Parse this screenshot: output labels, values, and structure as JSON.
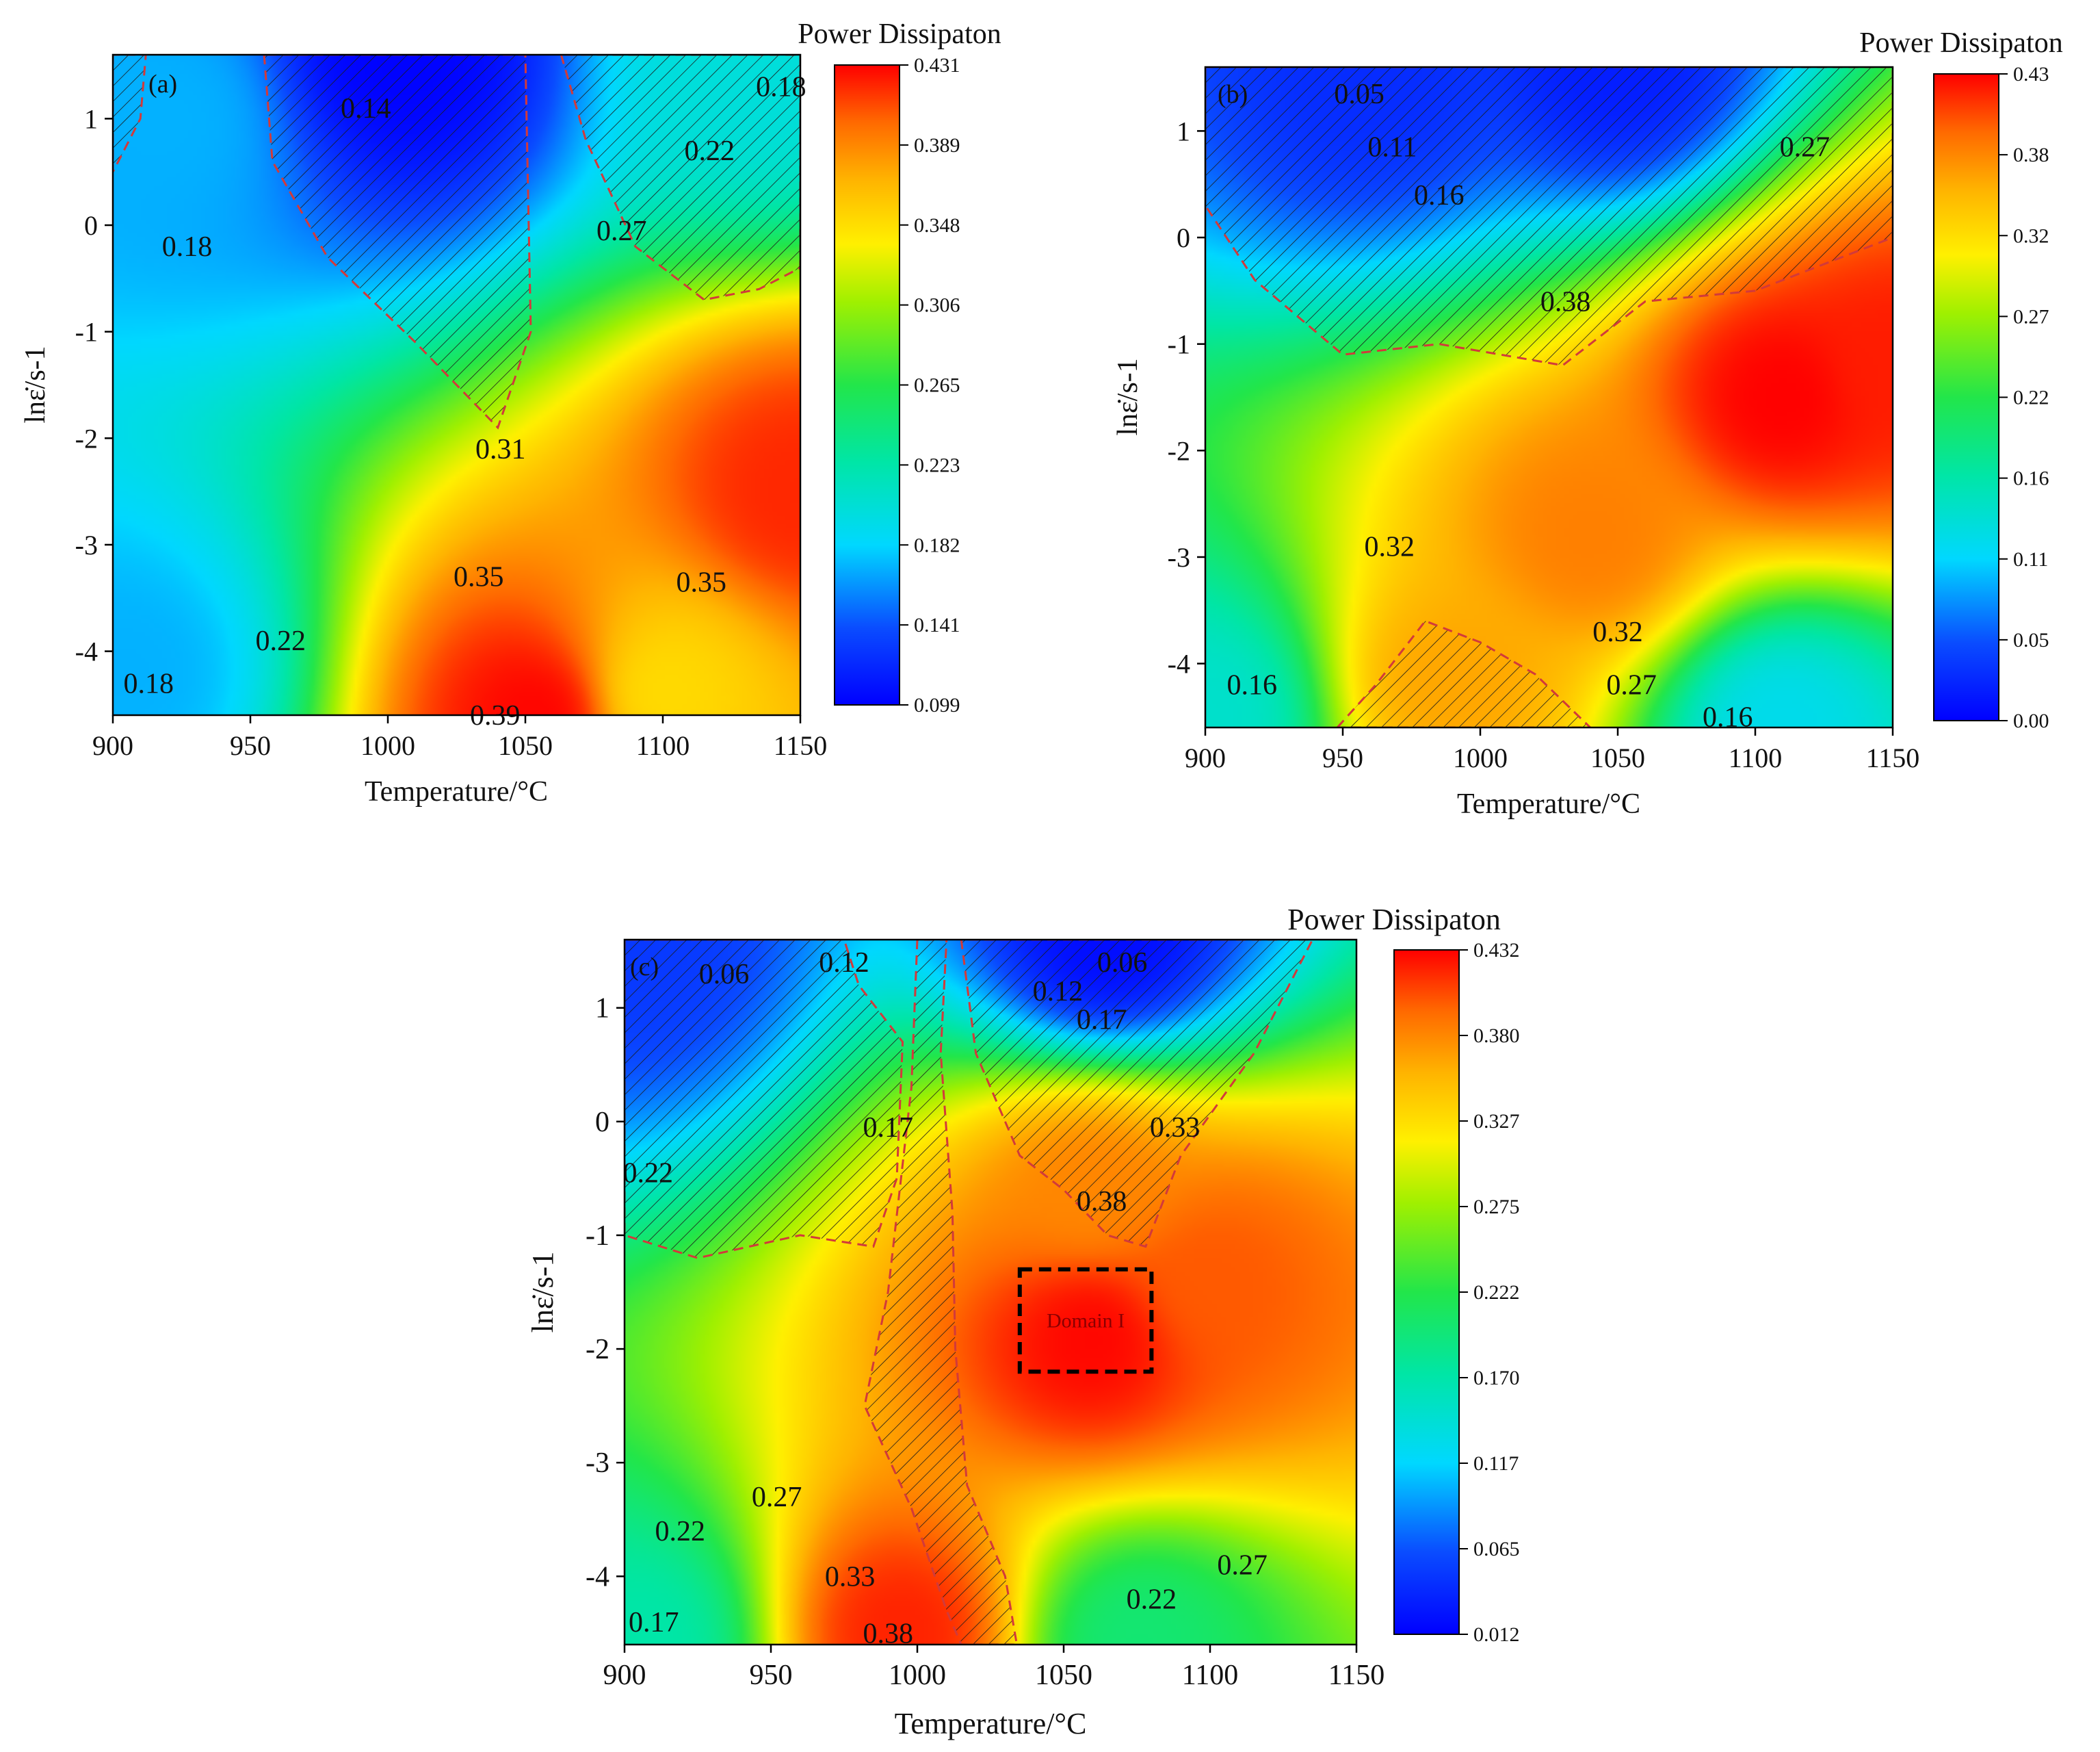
{
  "chart_data": [
    {
      "type": "heatmap",
      "panel_label": "(a)",
      "title": "",
      "xlabel": "Temperature/°C",
      "ylabel": "lnε̇/s-1",
      "colorbar_title": "Power Dissipaton",
      "xlim": [
        900,
        1150
      ],
      "ylim": [
        -4.6,
        1.6
      ],
      "xticks": [
        "900",
        "950",
        "1000",
        "1050",
        "1100",
        "1150"
      ],
      "yticks": [
        "1",
        "0",
        "-1",
        "-2",
        "-3",
        "-4"
      ],
      "colorbar_range": [
        0.099,
        0.431
      ],
      "colorbar_ticks": [
        "0.431",
        "0.389",
        "0.348",
        "0.306",
        "0.265",
        "0.223",
        "0.182",
        "0.141",
        "0.099"
      ],
      "peaks": [
        {
          "x": 1055,
          "y": -4.6,
          "value": 0.43
        },
        {
          "x": 1150,
          "y": -2.5,
          "value": 0.42
        },
        {
          "x": 1100,
          "y": -4.4,
          "value": 0.35
        }
      ],
      "valleys": [
        {
          "x": 1005,
          "y": 1.6,
          "value": 0.1
        },
        {
          "x": 920,
          "y": 1.0,
          "value": 0.17
        },
        {
          "x": 905,
          "y": -4.2,
          "value": 0.17
        },
        {
          "x": 1135,
          "y": 1.6,
          "value": 0.2
        }
      ],
      "contour_labels": [
        {
          "text": "0.14",
          "x": 992,
          "y": 1.1
        },
        {
          "text": "0.18",
          "x": 1143,
          "y": 1.3
        },
        {
          "text": "0.22",
          "x": 1117,
          "y": 0.7
        },
        {
          "text": "0.27",
          "x": 1085,
          "y": -0.05
        },
        {
          "text": "0.18",
          "x": 927,
          "y": -0.2
        },
        {
          "text": "0.31",
          "x": 1041,
          "y": -2.1
        },
        {
          "text": "0.35",
          "x": 1033,
          "y": -3.3
        },
        {
          "text": "0.35",
          "x": 1114,
          "y": -3.35
        },
        {
          "text": "0.22",
          "x": 961,
          "y": -3.9
        },
        {
          "text": "0.18",
          "x": 913,
          "y": -4.3
        },
        {
          "text": "0.39",
          "x": 1039,
          "y": -4.6
        }
      ],
      "instability_regions": [
        [
          [
            900,
            1.6
          ],
          [
            900,
            0.5
          ],
          [
            910,
            1.0
          ],
          [
            912,
            1.6
          ]
        ],
        [
          [
            955,
            1.6
          ],
          [
            958,
            0.6
          ],
          [
            978,
            -0.3
          ],
          [
            1010,
            -1.1
          ],
          [
            1040,
            -1.9
          ],
          [
            1052,
            -1.0
          ],
          [
            1050,
            1.6
          ]
        ],
        [
          [
            1063,
            1.6
          ],
          [
            1072,
            0.8
          ],
          [
            1090,
            -0.2
          ],
          [
            1115,
            -0.7
          ],
          [
            1135,
            -0.6
          ],
          [
            1150,
            -0.4
          ],
          [
            1150,
            1.6
          ]
        ]
      ]
    },
    {
      "type": "heatmap",
      "panel_label": "(b)",
      "title": "",
      "xlabel": "Temperature/°C",
      "ylabel": "lnε̇/s-1",
      "colorbar_title": "Power Dissipaton",
      "xlim": [
        900,
        1150
      ],
      "ylim": [
        -4.6,
        1.6
      ],
      "xticks": [
        "900",
        "950",
        "1000",
        "1050",
        "1100",
        "1150"
      ],
      "yticks": [
        "1",
        "0",
        "-1",
        "-2",
        "-3",
        "-4"
      ],
      "colorbar_range": [
        0.0,
        0.43
      ],
      "colorbar_ticks": [
        "0.43",
        "0.38",
        "0.32",
        "0.27",
        "0.22",
        "0.16",
        "0.11",
        "0.05",
        "0.00"
      ],
      "peaks": [
        {
          "x": 1110,
          "y": -1.5,
          "value": 0.43
        },
        {
          "x": 1150,
          "y": -1.2,
          "value": 0.42
        },
        {
          "x": 1040,
          "y": -2.8,
          "value": 0.38
        },
        {
          "x": 990,
          "y": -4.2,
          "value": 0.36
        }
      ],
      "valleys": [
        {
          "x": 1050,
          "y": 1.6,
          "value": 0.02
        },
        {
          "x": 960,
          "y": 1.5,
          "value": 0.03
        },
        {
          "x": 1110,
          "y": -4.6,
          "value": 0.12
        },
        {
          "x": 900,
          "y": -4.5,
          "value": 0.14
        }
      ],
      "contour_labels": [
        {
          "text": "0.05",
          "x": 956,
          "y": 1.35
        },
        {
          "text": "0.11",
          "x": 968,
          "y": 0.85
        },
        {
          "text": "0.16",
          "x": 985,
          "y": 0.4
        },
        {
          "text": "0.27",
          "x": 1118,
          "y": 0.85
        },
        {
          "text": "0.38",
          "x": 1031,
          "y": -0.6
        },
        {
          "text": "0.32",
          "x": 967,
          "y": -2.9
        },
        {
          "text": "0.32",
          "x": 1050,
          "y": -3.7
        },
        {
          "text": "0.27",
          "x": 1055,
          "y": -4.2
        },
        {
          "text": "0.16",
          "x": 1090,
          "y": -4.5
        },
        {
          "text": "0.16",
          "x": 917,
          "y": -4.2
        }
      ],
      "instability_regions": [
        [
          [
            900,
            1.6
          ],
          [
            900,
            0.3
          ],
          [
            918,
            -0.4
          ],
          [
            950,
            -1.1
          ],
          [
            985,
            -1.0
          ],
          [
            1030,
            -1.2
          ],
          [
            1060,
            -0.6
          ],
          [
            1100,
            -0.5
          ],
          [
            1150,
            0.0
          ],
          [
            1150,
            1.6
          ]
        ],
        [
          [
            948,
            -4.6
          ],
          [
            962,
            -4.2
          ],
          [
            980,
            -3.6
          ],
          [
            1000,
            -3.8
          ],
          [
            1020,
            -4.1
          ],
          [
            1040,
            -4.6
          ]
        ]
      ]
    },
    {
      "type": "heatmap",
      "panel_label": "(c)",
      "title": "",
      "xlabel": "Temperature/°C",
      "ylabel": "lnε̇/s-1",
      "colorbar_title": "Power Dissipaton",
      "xlim": [
        900,
        1150
      ],
      "ylim": [
        -4.6,
        1.6
      ],
      "xticks": [
        "900",
        "950",
        "1000",
        "1050",
        "1100",
        "1150"
      ],
      "yticks": [
        "1",
        "0",
        "-1",
        "-2",
        "-3",
        "-4"
      ],
      "colorbar_range": [
        0.012,
        0.432
      ],
      "colorbar_ticks": [
        "0.432",
        "0.380",
        "0.327",
        "0.275",
        "0.222",
        "0.170",
        "0.117",
        "0.065",
        "0.012"
      ],
      "peaks": [
        {
          "x": 1060,
          "y": -1.9,
          "value": 0.43
        },
        {
          "x": 1100,
          "y": -1.4,
          "value": 0.4
        },
        {
          "x": 995,
          "y": -4.5,
          "value": 0.42
        },
        {
          "x": 1060,
          "y": -0.6,
          "value": 0.38
        }
      ],
      "valleys": [
        {
          "x": 1065,
          "y": 1.6,
          "value": 0.02
        },
        {
          "x": 905,
          "y": 1.55,
          "value": 0.05
        },
        {
          "x": 1075,
          "y": -4.6,
          "value": 0.2
        },
        {
          "x": 905,
          "y": -4.6,
          "value": 0.17
        }
      ],
      "contour_labels": [
        {
          "text": "0.06",
          "x": 934,
          "y": 1.3
        },
        {
          "text": "0.12",
          "x": 975,
          "y": 1.4
        },
        {
          "text": "0.06",
          "x": 1070,
          "y": 1.4
        },
        {
          "text": "0.12",
          "x": 1048,
          "y": 1.15
        },
        {
          "text": "0.17",
          "x": 1063,
          "y": 0.9
        },
        {
          "text": "0.17",
          "x": 990,
          "y": -0.05
        },
        {
          "text": "0.33",
          "x": 1088,
          "y": -0.05
        },
        {
          "text": "0.22",
          "x": 908,
          "y": -0.45
        },
        {
          "text": "0.38",
          "x": 1063,
          "y": -0.7
        },
        {
          "text": "0.27",
          "x": 952,
          "y": -3.3
        },
        {
          "text": "0.22",
          "x": 919,
          "y": -3.6
        },
        {
          "text": "0.27",
          "x": 1111,
          "y": -3.9
        },
        {
          "text": "0.33",
          "x": 977,
          "y": -4.0
        },
        {
          "text": "0.22",
          "x": 1080,
          "y": -4.2
        },
        {
          "text": "0.17",
          "x": 910,
          "y": -4.4
        },
        {
          "text": "0.38",
          "x": 990,
          "y": -4.5
        }
      ],
      "instability_regions": [
        [
          [
            900,
            1.6
          ],
          [
            900,
            -1.0
          ],
          [
            925,
            -1.2
          ],
          [
            960,
            -1.0
          ],
          [
            985,
            -1.1
          ],
          [
            993,
            -0.5
          ],
          [
            995,
            0.7
          ],
          [
            980,
            1.2
          ],
          [
            975,
            1.6
          ]
        ],
        [
          [
            1000,
            1.6
          ],
          [
            998,
            0.3
          ],
          [
            990,
            -1.5
          ],
          [
            982,
            -2.5
          ],
          [
            998,
            -3.4
          ],
          [
            1010,
            -4.3
          ],
          [
            1015,
            -4.6
          ],
          [
            1034,
            -4.6
          ],
          [
            1030,
            -4.0
          ],
          [
            1017,
            -3.2
          ],
          [
            1013,
            -2.0
          ],
          [
            1012,
            -0.8
          ],
          [
            1008,
            0.6
          ],
          [
            1010,
            1.6
          ]
        ],
        [
          [
            1015,
            1.6
          ],
          [
            1020,
            0.6
          ],
          [
            1035,
            -0.3
          ],
          [
            1050,
            -0.6
          ],
          [
            1065,
            -1.0
          ],
          [
            1078,
            -1.1
          ],
          [
            1090,
            -0.3
          ],
          [
            1115,
            0.6
          ],
          [
            1135,
            1.6
          ]
        ]
      ],
      "annotation_box": {
        "label": "Domain I",
        "x": [
          1035,
          1080
        ],
        "y": [
          -2.2,
          -1.3
        ]
      }
    }
  ]
}
